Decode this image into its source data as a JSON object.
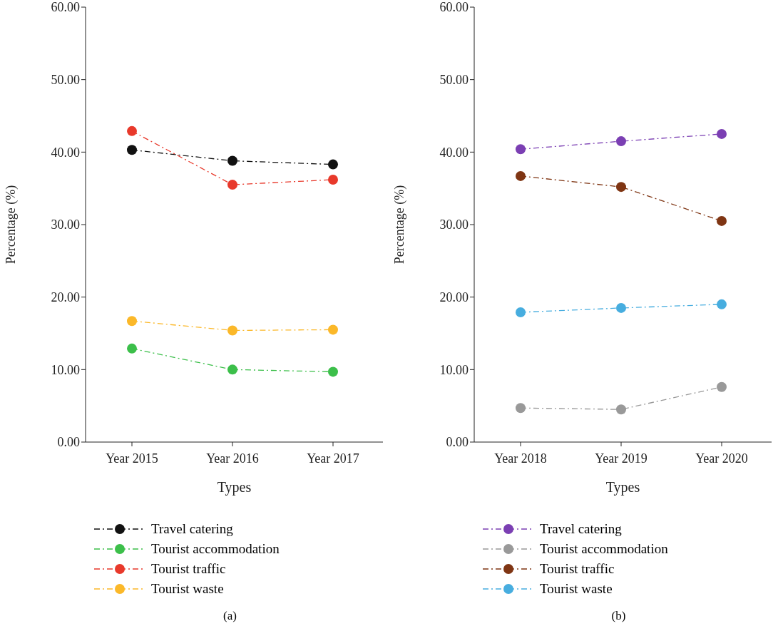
{
  "chart_data": [
    {
      "type": "line",
      "xlabel": "Types",
      "ylabel": "Percentage (%)",
      "categories": [
        "Year 2015",
        "Year 2016",
        "Year 2017"
      ],
      "ylim": [
        0,
        60
      ],
      "yticks": [
        {
          "value": 0,
          "label": "0.00"
        },
        {
          "value": 10,
          "label": "10.00"
        },
        {
          "value": 20,
          "label": "20.00"
        },
        {
          "value": 30,
          "label": "30.00"
        },
        {
          "value": 40,
          "label": "40.00"
        },
        {
          "value": 50,
          "label": "50.00"
        },
        {
          "value": 60,
          "label": "60.00"
        }
      ],
      "marker": "circle",
      "line_style": "dashed",
      "legend": "bottom",
      "annotations": [
        "(a)"
      ],
      "series": [
        {
          "name": "Travel catering",
          "color": "#111111",
          "values": [
            40.3,
            38.8,
            38.3
          ]
        },
        {
          "name": "Tourist accommodation",
          "color": "#3cbf4a",
          "values": [
            12.9,
            10.0,
            9.7
          ]
        },
        {
          "name": "Tourist traffic",
          "color": "#e8392b",
          "values": [
            42.9,
            35.5,
            36.2
          ]
        },
        {
          "name": "Tourist waste",
          "color": "#fbb829",
          "values": [
            16.7,
            15.4,
            15.5
          ]
        }
      ]
    },
    {
      "type": "line",
      "xlabel": "Types",
      "ylabel": "Percentage (%)",
      "categories": [
        "Year 2018",
        "Year 2019",
        "Year 2020"
      ],
      "ylim": [
        0,
        60
      ],
      "yticks": [
        {
          "value": 0,
          "label": "0.00"
        },
        {
          "value": 10,
          "label": "10.00"
        },
        {
          "value": 20,
          "label": "20.00"
        },
        {
          "value": 30,
          "label": "30.00"
        },
        {
          "value": 40,
          "label": "40.00"
        },
        {
          "value": 50,
          "label": "50.00"
        },
        {
          "value": 60,
          "label": "60.00"
        }
      ],
      "marker": "circle",
      "line_style": "dashed",
      "legend": "bottom",
      "annotations": [
        "(b)"
      ],
      "series": [
        {
          "name": "Travel catering",
          "color": "#7b3fb3",
          "values": [
            40.4,
            41.5,
            42.5
          ]
        },
        {
          "name": "Tourist accommodation",
          "color": "#999999",
          "values": [
            4.7,
            4.5,
            7.6
          ]
        },
        {
          "name": "Tourist traffic",
          "color": "#7f3513",
          "values": [
            36.7,
            35.2,
            30.5
          ]
        },
        {
          "name": "Tourist waste",
          "color": "#47addf",
          "values": [
            17.9,
            18.5,
            19.0
          ]
        }
      ]
    }
  ]
}
